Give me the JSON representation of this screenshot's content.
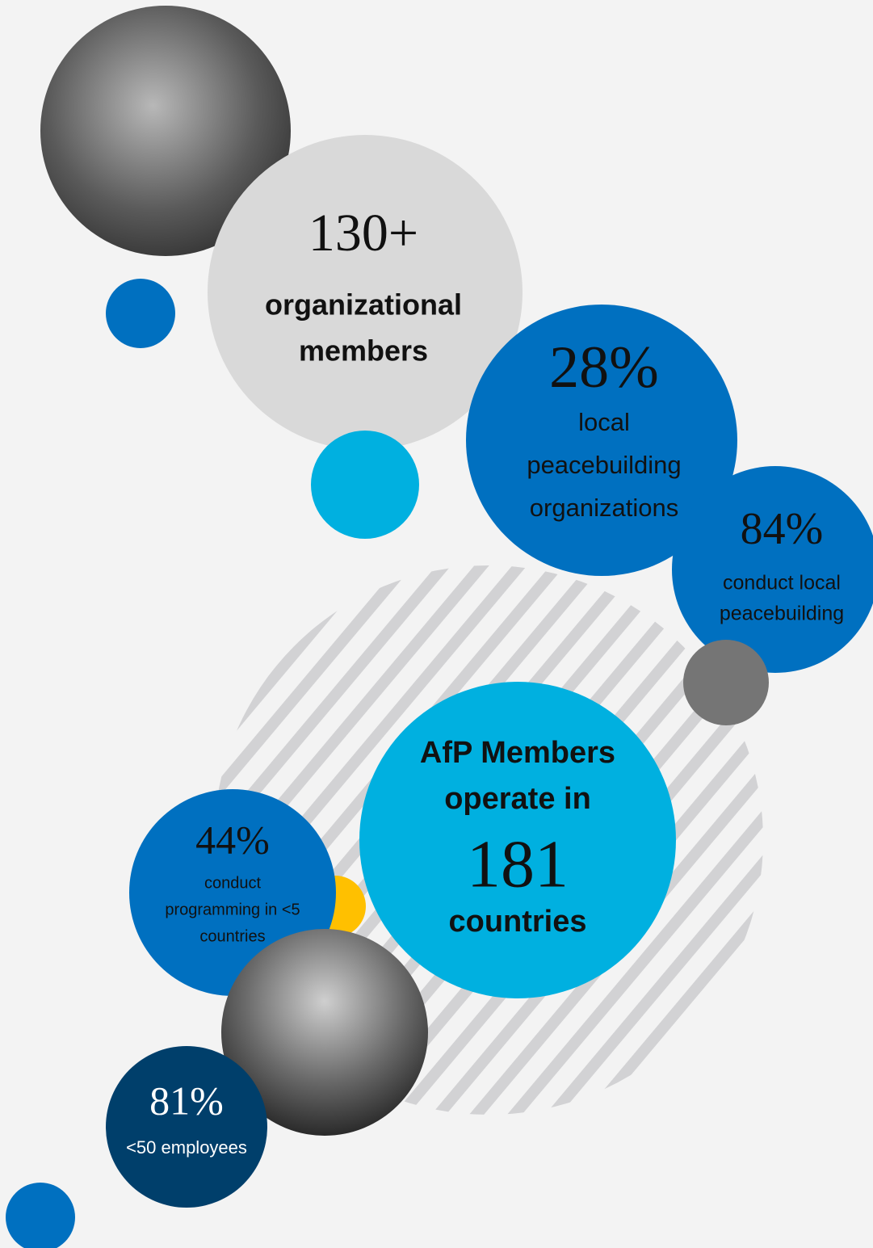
{
  "stats": [
    {
      "figure": "130+",
      "label": [
        "organizational",
        "members"
      ]
    },
    {
      "figure": "28%",
      "label": [
        "local",
        "peacebuilding",
        "organizations"
      ]
    },
    {
      "figure": "84%",
      "label": [
        "conduct local",
        "peacebuilding"
      ]
    },
    {
      "intro": [
        "AfP Members",
        "operate in"
      ],
      "figure": "181",
      "label": [
        "countries"
      ]
    },
    {
      "figure": "44%",
      "label": [
        "conduct",
        "programming in <5",
        "countries"
      ]
    },
    {
      "figure": "81%",
      "label": [
        "<50 employees"
      ]
    }
  ]
}
